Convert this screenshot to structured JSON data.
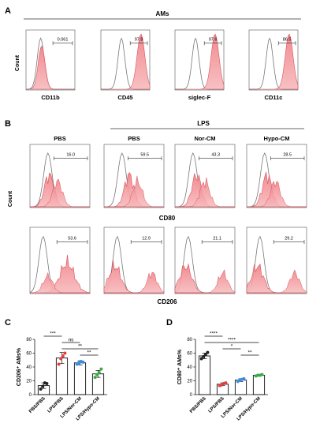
{
  "panel_A": {
    "letter": "A",
    "group_label": "AMs",
    "ylabel": "Count",
    "histograms": [
      {
        "marker": "CD11b",
        "gate_value": "0.061",
        "shift": "none"
      },
      {
        "marker": "CD45",
        "gate_value": "97.8",
        "shift": "high"
      },
      {
        "marker": "siglec-F",
        "gate_value": "97.6",
        "shift": "high"
      },
      {
        "marker": "CD11c",
        "gate_value": "86.5",
        "shift": "high"
      }
    ]
  },
  "panel_B": {
    "letter": "B",
    "lps_label": "LPS",
    "column_titles": [
      "PBS",
      "PBS",
      "Nor-CM",
      "Hypo-CM"
    ],
    "ylabel": "Count",
    "row1": {
      "marker": "CD80",
      "gate_values": [
        "16.0",
        "59.5",
        "43.3",
        "28.5"
      ]
    },
    "row2": {
      "marker": "CD206",
      "gate_values": [
        "53.6",
        "12.9",
        "21.1",
        "29.2"
      ]
    }
  },
  "chart_data": [
    {
      "panel": "C",
      "type": "bar",
      "categories": [
        "PBS/PBS",
        "LPS/PBS",
        "LPS/Nor-CM",
        "LPS/Hypo-CM"
      ],
      "values": [
        13,
        53,
        46,
        30
      ],
      "errors": [
        4,
        8,
        3,
        5
      ],
      "points": [
        [
          8,
          12,
          17,
          16
        ],
        [
          44,
          52,
          56,
          60
        ],
        [
          44,
          46,
          48,
          47
        ],
        [
          25,
          29,
          32,
          37
        ]
      ],
      "point_colors": [
        "#222222",
        "#e04040",
        "#3a8ee0",
        "#3aaa45"
      ],
      "ylabel": "CD206⁺ AMs%",
      "ylim": [
        0,
        80
      ],
      "yticks": [
        0,
        20,
        40,
        60,
        80
      ],
      "significance": [
        {
          "from": 0,
          "to": 1,
          "label": "***"
        },
        {
          "from": 1,
          "to": 2,
          "label": "ns"
        },
        {
          "from": 1,
          "to": 3,
          "label": "**"
        },
        {
          "from": 2,
          "to": 3,
          "label": "**"
        }
      ]
    },
    {
      "panel": "D",
      "type": "bar",
      "categories": [
        "PBS/PBS",
        "LPS/PBS",
        "LPS/Nor-CM",
        "LPS/Hypo-CM"
      ],
      "values": [
        56,
        15,
        21,
        28
      ],
      "errors": [
        4,
        2,
        2,
        1
      ],
      "points": [
        [
          52,
          55,
          58,
          61
        ],
        [
          13,
          14,
          16,
          17
        ],
        [
          19,
          21,
          22,
          23
        ],
        [
          27,
          28,
          28,
          29
        ]
      ],
      "point_colors": [
        "#222222",
        "#e04040",
        "#3a8ee0",
        "#3aaa45"
      ],
      "ylabel": "CD80⁺ AMs%",
      "ylim": [
        0,
        80
      ],
      "yticks": [
        0,
        20,
        40,
        60,
        80
      ],
      "significance": [
        {
          "from": 0,
          "to": 1,
          "label": "****"
        },
        {
          "from": 0,
          "to": 3,
          "label": "****"
        },
        {
          "from": 1,
          "to": 2,
          "label": "*"
        },
        {
          "from": 2,
          "to": 3,
          "label": "**"
        }
      ]
    }
  ]
}
